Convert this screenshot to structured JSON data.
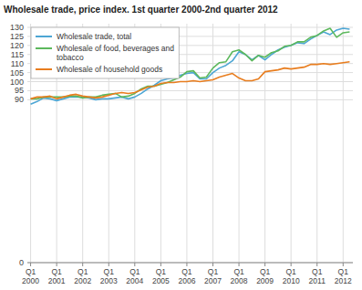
{
  "chart_data": {
    "type": "line",
    "title": "Wholesale trade, price index. 1st quarter 2000-2nd quarter 2012",
    "categories": [
      "Q1\n2000",
      null,
      null,
      null,
      "Q1\n2001",
      null,
      null,
      null,
      "Q1\n2002",
      null,
      null,
      null,
      "Q1\n2003",
      null,
      null,
      null,
      "Q1\n2004",
      null,
      null,
      null,
      "Q1\n2005",
      null,
      null,
      null,
      "Q1\n2006",
      null,
      null,
      null,
      "Q1\n2007",
      null,
      null,
      null,
      "Q1\n2008",
      null,
      null,
      null,
      "Q1\n2009",
      null,
      null,
      null,
      "Q1\n2010",
      null,
      null,
      null,
      "Q1\n2011",
      null,
      null,
      null,
      "Q1\n2012",
      null
    ],
    "series": [
      {
        "name": "Wholesale trade, total",
        "color": "#4da6d4",
        "values": [
          87.5,
          89.0,
          91.0,
          90.5,
          89.5,
          90.5,
          91.5,
          91.5,
          91.5,
          91.0,
          90.0,
          90.5,
          90.5,
          91.0,
          91.5,
          90.5,
          91.5,
          93.5,
          96.0,
          98.0,
          100.5,
          101.5,
          102.0,
          103.5,
          104.5,
          105.0,
          101.5,
          101.5,
          105.0,
          107.5,
          109.0,
          111.5,
          116.5,
          115.0,
          112.0,
          114.5,
          112.0,
          115.0,
          117.5,
          119.0,
          120.0,
          121.5,
          121.0,
          123.5,
          125.5,
          127.5,
          126.0,
          128.5,
          129.5,
          129.0
        ]
      },
      {
        "name": "Wholesale of food, beverages and\ntobacco",
        "color": "#5cb85c",
        "values": [
          90.5,
          90.5,
          91.5,
          91.5,
          91.5,
          91.5,
          92.0,
          92.0,
          91.0,
          91.5,
          91.5,
          92.5,
          93.0,
          93.5,
          91.5,
          92.0,
          93.5,
          96.0,
          97.5,
          97.5,
          98.5,
          99.5,
          101.0,
          102.5,
          105.5,
          106.0,
          102.0,
          102.5,
          107.5,
          110.5,
          111.0,
          116.5,
          117.5,
          115.0,
          111.5,
          114.5,
          113.5,
          116.0,
          117.0,
          119.5,
          120.0,
          122.0,
          122.0,
          124.5,
          125.5,
          128.0,
          129.5,
          124.5,
          127.0,
          127.5
        ]
      },
      {
        "name": "Wholesale of household goods",
        "color": "#e87d1e",
        "values": [
          90.5,
          91.5,
          91.5,
          92.0,
          90.5,
          91.5,
          92.5,
          93.0,
          92.0,
          91.5,
          91.0,
          91.5,
          92.5,
          93.5,
          94.0,
          93.5,
          94.0,
          95.5,
          97.0,
          97.5,
          99.0,
          99.5,
          99.5,
          100.0,
          100.0,
          100.5,
          100.0,
          100.5,
          101.0,
          102.5,
          103.5,
          104.5,
          102.0,
          100.5,
          100.5,
          101.5,
          105.5,
          106.0,
          106.5,
          107.5,
          107.0,
          107.5,
          108.0,
          109.5,
          109.5,
          110.0,
          109.5,
          110.0,
          110.5,
          111.0
        ]
      }
    ],
    "ylim": [
      0,
      132
    ],
    "yticks": [
      0,
      90,
      95,
      100,
      105,
      110,
      115,
      120,
      125,
      130
    ],
    "grid": true,
    "legend": "upper left"
  }
}
